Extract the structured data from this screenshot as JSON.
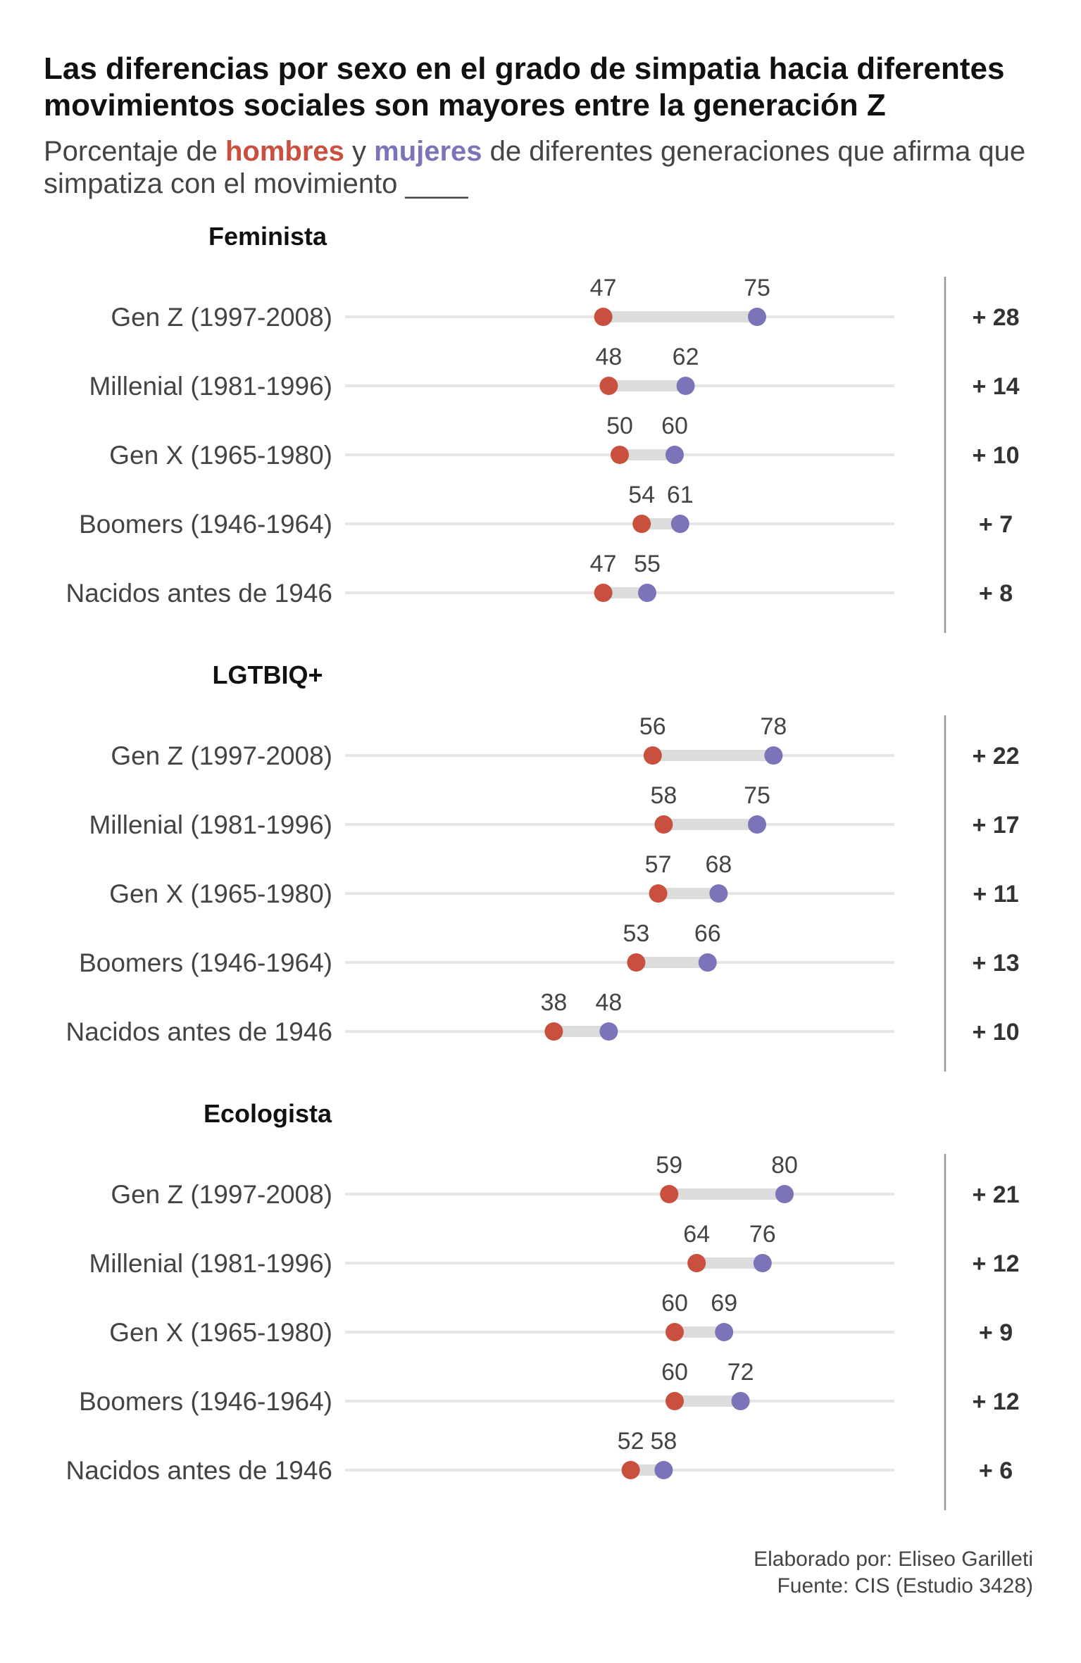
{
  "title": "Las diferencias por sexo en el grado de simpatia hacia diferentes movimientos sociales son mayores entre la generación Z",
  "subtitle": {
    "prefix": "Porcentaje de ",
    "men_label": "hombres",
    "middle": " y ",
    "women_label": "mujeres",
    "suffix": " de diferentes generaciones que afirma que simpatiza con el movimiento ____"
  },
  "colors": {
    "men": "#c9503e",
    "women": "#7b74b8",
    "bar": "#dcdcdc",
    "track": "#e6e6e6"
  },
  "chart_data": {
    "type": "dumbbell",
    "xlim": [
      0,
      100
    ],
    "series": [
      {
        "name": "hombres"
      },
      {
        "name": "mujeres"
      }
    ],
    "panels": [
      {
        "title": "Feminista",
        "rows": [
          {
            "label": "Gen Z (1997-2008)",
            "men": 47,
            "women": 75,
            "diff": "+ 28"
          },
          {
            "label": "Millenial (1981-1996)",
            "men": 48,
            "women": 62,
            "diff": "+ 14"
          },
          {
            "label": "Gen X (1965-1980)",
            "men": 50,
            "women": 60,
            "diff": "+ 10"
          },
          {
            "label": "Boomers (1946-1964)",
            "men": 54,
            "women": 61,
            "diff": "+ 7"
          },
          {
            "label": "Nacidos antes de 1946",
            "men": 47,
            "women": 55,
            "diff": "+ 8"
          }
        ]
      },
      {
        "title": "LGTBIQ+",
        "rows": [
          {
            "label": "Gen Z (1997-2008)",
            "men": 56,
            "women": 78,
            "diff": "+ 22"
          },
          {
            "label": "Millenial (1981-1996)",
            "men": 58,
            "women": 75,
            "diff": "+ 17"
          },
          {
            "label": "Gen X (1965-1980)",
            "men": 57,
            "women": 68,
            "diff": "+ 11"
          },
          {
            "label": "Boomers (1946-1964)",
            "men": 53,
            "women": 66,
            "diff": "+ 13"
          },
          {
            "label": "Nacidos antes de 1946",
            "men": 38,
            "women": 48,
            "diff": "+ 10"
          }
        ]
      },
      {
        "title": "Ecologista",
        "rows": [
          {
            "label": "Gen Z (1997-2008)",
            "men": 59,
            "women": 80,
            "diff": "+ 21"
          },
          {
            "label": "Millenial (1981-1996)",
            "men": 64,
            "women": 76,
            "diff": "+ 12"
          },
          {
            "label": "Gen X (1965-1980)",
            "men": 60,
            "women": 69,
            "diff": "+ 9"
          },
          {
            "label": "Boomers (1946-1964)",
            "men": 60,
            "women": 72,
            "diff": "+ 12"
          },
          {
            "label": "Nacidos antes de 1946",
            "men": 52,
            "women": 58,
            "diff": "+ 6"
          }
        ]
      }
    ]
  },
  "footer": {
    "author": "Elaborado por: Eliseo Garilleti",
    "source": "Fuente: CIS (Estudio 3428)"
  }
}
